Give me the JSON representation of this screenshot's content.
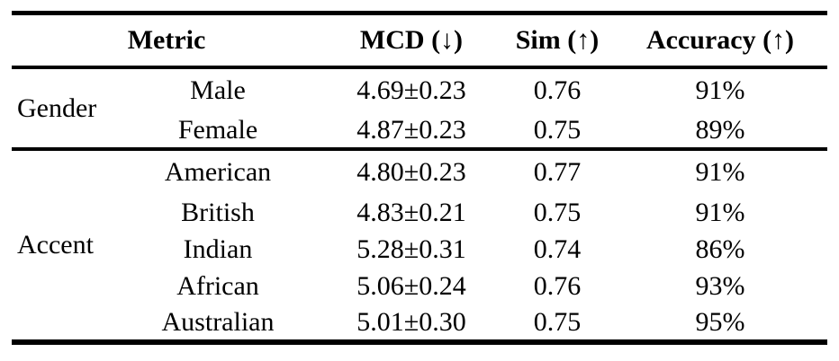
{
  "colors": {
    "text": "#000000",
    "background": "#ffffff",
    "rule": "#000000"
  },
  "table": {
    "headers": {
      "metric": "Metric",
      "mcd": "MCD (↓)",
      "sim": "Sim (↑)",
      "accuracy": "Accuracy (↑)"
    },
    "groups": [
      {
        "label": "Gender",
        "rows": [
          {
            "metric": "Male",
            "mcd": "4.69±0.23",
            "sim": "0.76",
            "accuracy": "91%"
          },
          {
            "metric": "Female",
            "mcd": "4.87±0.23",
            "sim": "0.75",
            "accuracy": "89%"
          }
        ]
      },
      {
        "label": "Accent",
        "rows": [
          {
            "metric": "American",
            "mcd": "4.80±0.23",
            "sim": "0.77",
            "accuracy": "91%"
          },
          {
            "metric": "British",
            "mcd": "4.83±0.21",
            "sim": "0.75",
            "accuracy": "91%"
          },
          {
            "metric": "Indian",
            "mcd": "5.28±0.31",
            "sim": "0.74",
            "accuracy": "86%"
          },
          {
            "metric": "African",
            "mcd": "5.06±0.24",
            "sim": "0.76",
            "accuracy": "93%"
          },
          {
            "metric": "Australian",
            "mcd": "5.01±0.30",
            "sim": "0.75",
            "accuracy": "95%"
          }
        ]
      }
    ]
  },
  "chart_data": {
    "type": "table",
    "columns": [
      "",
      "Metric",
      "MCD (↓)",
      "Sim (↑)",
      "Accuracy (↑)"
    ],
    "rows": [
      [
        "Gender",
        "Male",
        "4.69±0.23",
        0.76,
        "91%"
      ],
      [
        "Gender",
        "Female",
        "4.87±0.23",
        0.75,
        "89%"
      ],
      [
        "Accent",
        "American",
        "4.80±0.23",
        0.77,
        "91%"
      ],
      [
        "Accent",
        "British",
        "4.83±0.21",
        0.75,
        "91%"
      ],
      [
        "Accent",
        "Indian",
        "5.28±0.31",
        0.74,
        "86%"
      ],
      [
        "Accent",
        "African",
        "5.06±0.24",
        0.76,
        "93%"
      ],
      [
        "Accent",
        "Australian",
        "5.01±0.30",
        0.75,
        "95%"
      ]
    ]
  }
}
